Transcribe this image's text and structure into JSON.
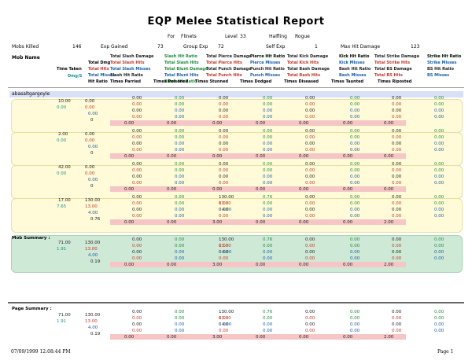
{
  "report_title": "EQP Melee Statistical Report",
  "header": {
    "for_label": "For",
    "player": "Flinets",
    "level_label": "Level",
    "level": "33",
    "race": "Halfling",
    "class": "Rogue"
  },
  "stats": {
    "mobs_killed_label": "Mobs Killed",
    "mobs_killed": "146",
    "exp_gained_label": "Exp Gained",
    "exp_gained": "73",
    "group_exp_label": "Group Exp",
    "group_exp": "72",
    "self_exp_label": "Self Exp",
    "self_exp": "1",
    "max_hit_label": "Max Hit Damage",
    "max_hit": "123"
  },
  "column_headers": {
    "mob_name": "Mob Name",
    "time_taken": "Time Taken",
    "dmg_per_s": "Dmg/S",
    "total_dmg": "Total Dmg",
    "total_hits": "Total Hits",
    "total_misses": "Total Misses",
    "hit_ratio": "Hit Ratio",
    "slash": [
      "Total Slash Damage",
      "Total Slash Hits",
      "Total Slash Misses",
      "Slash Hit Ratio"
    ],
    "slash_green": "Slash Hit Ratio",
    "blunt": [
      "Total Slash Hits",
      "Total Blunt Damage",
      "Total Blunt Hits",
      "Blunt Hit Ratio"
    ],
    "pierce": [
      "Total Pierce Damage",
      "Total Pierce Hits",
      "Total Punch Damage",
      "Total Punch Hits"
    ],
    "pierce_green": "Pierce Hit Ratio",
    "punch": [
      "Pierce Hit Ratio",
      "Pierce Misses",
      "Punch Hit Ratio",
      "Punch Misses"
    ],
    "kick": [
      "Total Kick Damage",
      "Total Kick Hits",
      "Total Bash Damage",
      "Total Bash Hits"
    ],
    "kick_green": "Kick Hit Ratio",
    "kick2": [
      "Kick Hit Ratio",
      "Kick Misses",
      "Bash Hit Ratio",
      "Bash Misses"
    ],
    "strike": [
      "Total Strike Damage",
      "Total Strike Hits",
      "Total BS Damage",
      "Total BS Hits"
    ],
    "strike_green": "Strike Hit Ratio",
    "strike2": [
      "Strike Hit Ratio",
      "Strike Misses",
      "BS Hit Ratio",
      "BS Misses"
    ],
    "times": [
      "Times Parried",
      "Times Poisoned",
      "Times Stunned",
      "Times Dodged",
      "Times Diseased",
      "Times Taunted",
      "Times Riposted"
    ]
  },
  "group_name": "abasaltgargoyle",
  "mob_rows": [
    {
      "time": "10.00",
      "rate": "0.00",
      "dmg": "0.00",
      "hits": "0.00",
      "misses": "0.00",
      "ratio": "0",
      "cols": [
        "0.00",
        "0.00",
        "0.00",
        "0.00",
        "0.00",
        "0.00",
        "0.00",
        "0.00"
      ],
      "times": [
        "0.00",
        "0.00",
        "0.00",
        "0.00",
        "0.00",
        "0.00",
        "0.00"
      ]
    },
    {
      "time": "2.00",
      "rate": "0.00",
      "dmg": "0.00",
      "hits": "0.00",
      "misses": "0.00",
      "ratio": "0",
      "cols": [
        "0.00",
        "0.00",
        "0.00",
        "0.00",
        "0.00",
        "0.00",
        "0.00",
        "0.00"
      ],
      "times": [
        "0.00",
        "0.00",
        "0.00",
        "0.00",
        "0.00",
        "0.00",
        "0.00"
      ]
    },
    {
      "time": "42.00",
      "rate": "0.00",
      "dmg": "0.00",
      "hits": "0.00",
      "misses": "0.00",
      "ratio": "0",
      "cols": [
        "0.00",
        "0.00",
        "0.00",
        "0.00",
        "0.00",
        "0.00",
        "0.00",
        "0.00"
      ],
      "times": [
        "0.00",
        "0.00",
        "0.00",
        "0.00",
        "0.00",
        "0.00",
        "0.00"
      ]
    },
    {
      "time": "17.00",
      "rate": "7.65",
      "dmg": "130.00",
      "hits": "13.00",
      "misses": "4.00",
      "ratio": "0.76",
      "cols": [
        "0.00",
        "0.00",
        "130.00",
        "0.76",
        "0.00",
        "0.00",
        "0.00",
        "0.00"
      ],
      "times": [
        "0.00",
        "0.00",
        "3.00",
        "0.00",
        "0.00",
        "0.00",
        "2.00"
      ]
    }
  ],
  "mob_summary": {
    "label": "Mob Summary :",
    "time": "71.00",
    "rate": "1.91",
    "dmg": "130.00",
    "hits": "13.00",
    "misses": "4.00",
    "ratio": "0.19",
    "cols": [
      "0.00",
      "0.00",
      "130.00",
      "0.76",
      "0.00",
      "0.00",
      "0.00",
      "0.00"
    ],
    "times": [
      "0.00",
      "0.00",
      "3.00",
      "0.00",
      "0.00",
      "0.00",
      "2.00"
    ]
  },
  "page_summary": {
    "label": "Page Summary :",
    "time": "71.00",
    "rate": "1.91",
    "dmg": "130.00",
    "hits": "13.00",
    "misses": "4.00",
    "ratio": "0.19",
    "cols": [
      "0.00",
      "0.00",
      "130.00",
      "0.76",
      "0.00",
      "0.00",
      "0.00",
      "0.00"
    ],
    "times": [
      "0.00",
      "0.00",
      "3.00",
      "0.00",
      "0.00",
      "0.00",
      "2.00"
    ]
  },
  "footer": {
    "timestamp": "07/09/1999 12:08:44 PM",
    "page": "Page 1"
  }
}
